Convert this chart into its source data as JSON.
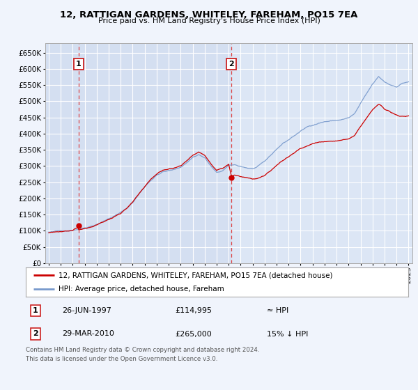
{
  "title1": "12, RATTIGAN GARDENS, WHITELEY, FAREHAM, PO15 7EA",
  "title2": "Price paid vs. HM Land Registry's House Price Index (HPI)",
  "bg_color": "#f0f4fc",
  "plot_bg": "#dce6f5",
  "grid_color": "#c8d4e8",
  "sale1_date": 1997.49,
  "sale1_price": 114995,
  "sale2_date": 2010.24,
  "sale2_price": 265000,
  "legend_line1": "12, RATTIGAN GARDENS, WHITELEY, FAREHAM, PO15 7EA (detached house)",
  "legend_line2": "HPI: Average price, detached house, Fareham",
  "ann1_label": "1",
  "ann1_date": "26-JUN-1997",
  "ann1_price": "£114,995",
  "ann1_hpi": "≈ HPI",
  "ann2_label": "2",
  "ann2_date": "29-MAR-2010",
  "ann2_price": "£265,000",
  "ann2_hpi": "15% ↓ HPI",
  "footer": "Contains HM Land Registry data © Crown copyright and database right 2024.\nThis data is licensed under the Open Government Licence v3.0.",
  "ylim": [
    0,
    680000
  ],
  "yticks": [
    0,
    50000,
    100000,
    150000,
    200000,
    250000,
    300000,
    350000,
    400000,
    450000,
    500000,
    550000,
    600000,
    650000
  ],
  "xlim_start": 1994.7,
  "xlim_end": 2025.3,
  "xticks": [
    1995,
    1996,
    1997,
    1998,
    1999,
    2000,
    2001,
    2002,
    2003,
    2004,
    2005,
    2006,
    2007,
    2008,
    2009,
    2010,
    2011,
    2012,
    2013,
    2014,
    2015,
    2016,
    2017,
    2018,
    2019,
    2020,
    2021,
    2022,
    2023,
    2024,
    2025
  ],
  "red_line_color": "#cc0000",
  "blue_line_color": "#7799cc",
  "dashed_line_color": "#dd4444",
  "shade_color": "#cdd9ee"
}
